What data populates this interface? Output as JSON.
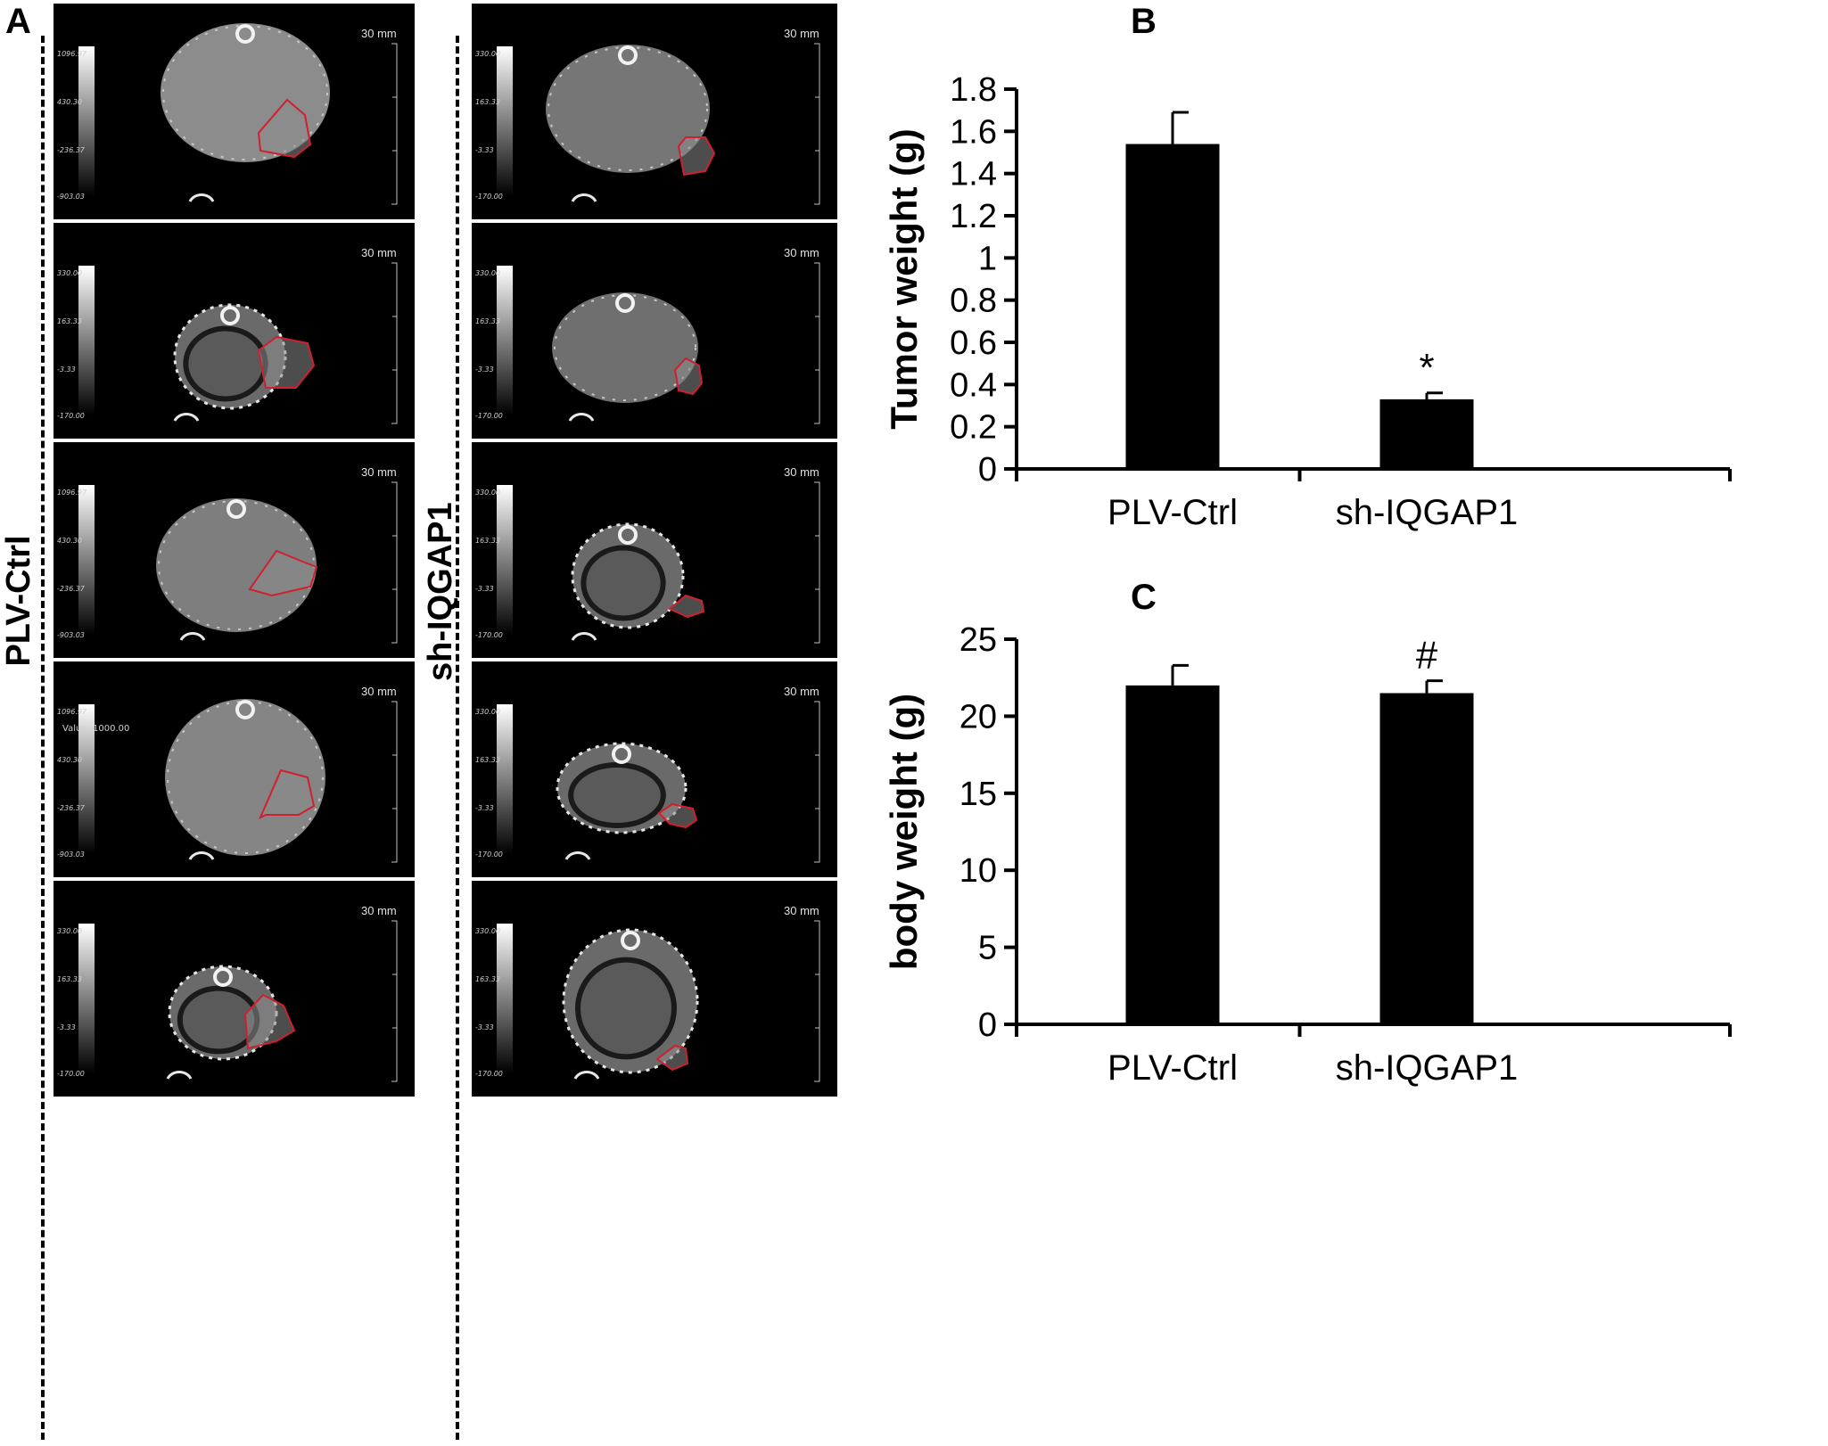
{
  "figure": {
    "panel_labels": {
      "a": "A",
      "b": "B",
      "c": "C"
    },
    "groups": {
      "left": "PLV-Ctrl",
      "right": "sh-IQGAP1"
    }
  },
  "ct_images": {
    "left": [
      {
        "scale_label": "30 mm",
        "colorbar": [
          "1096.97",
          "430.30",
          "-236.37",
          "-903.03"
        ],
        "value_label": ""
      },
      {
        "scale_label": "30 mm",
        "colorbar": [
          "330.00",
          "163.33",
          "-3.33",
          "-170.00"
        ],
        "value_label": ""
      },
      {
        "scale_label": "30 mm",
        "colorbar": [
          "1096.97",
          "430.30",
          "-236.37",
          "-903.03"
        ],
        "value_label": ""
      },
      {
        "scale_label": "30 mm",
        "colorbar": [
          "1096.97",
          "430.30",
          "-236.37",
          "-903.03"
        ],
        "value_label": "Value: 1000.00"
      },
      {
        "scale_label": "30 mm",
        "colorbar": [
          "330.00",
          "163.33",
          "-3.33",
          "-170.00"
        ],
        "value_label": ""
      }
    ],
    "right": [
      {
        "scale_label": "30 mm",
        "colorbar": [
          "330.00",
          "163.33",
          "-3.33",
          "-170.00"
        ],
        "value_label": ""
      },
      {
        "scale_label": "30 mm",
        "colorbar": [
          "330.00",
          "163.33",
          "-3.33",
          "-170.00"
        ],
        "value_label": ""
      },
      {
        "scale_label": "30 mm",
        "colorbar": [
          "330.00",
          "163.33",
          "-3.33",
          "-170.00"
        ],
        "value_label": ""
      },
      {
        "scale_label": "30 mm",
        "colorbar": [
          "330.00",
          "163.33",
          "-3.33",
          "-170.00"
        ],
        "value_label": ""
      },
      {
        "scale_label": "30 mm",
        "colorbar": [
          "330.00",
          "163.33",
          "-3.33",
          "-170.00"
        ],
        "value_label": ""
      }
    ],
    "tumor_outline_color": "#d0202f"
  },
  "chart_data": [
    {
      "type": "bar",
      "panel": "B",
      "categories": [
        "PLV-Ctrl",
        "sh-IQGAP1"
      ],
      "values": [
        1.54,
        0.33
      ],
      "errors": [
        0.15,
        0.03
      ],
      "annotations": [
        "",
        "*"
      ],
      "ylabel": "Tumor weight (g)",
      "ylim": [
        0,
        1.8
      ],
      "yticks": [
        "0",
        "0.2",
        "0.4",
        "0.6",
        "0.8",
        "1",
        "1.2",
        "1.4",
        "1.6",
        "1.8"
      ],
      "ytick_values": [
        0,
        0.2,
        0.4,
        0.6,
        0.8,
        1,
        1.2,
        1.4,
        1.6,
        1.8
      ],
      "grid": false,
      "bar_color": "#000000"
    },
    {
      "type": "bar",
      "panel": "C",
      "categories": [
        "PLV-Ctrl",
        "sh-IQGAP1"
      ],
      "values": [
        22.0,
        21.5
      ],
      "errors": [
        1.3,
        0.8
      ],
      "annotations": [
        "",
        "#"
      ],
      "ylabel": "body weight (g)",
      "ylim": [
        0,
        25
      ],
      "yticks": [
        "0",
        "5",
        "10",
        "15",
        "20",
        "25"
      ],
      "ytick_values": [
        0,
        5,
        10,
        15,
        20,
        25
      ],
      "grid": false,
      "bar_color": "#000000"
    }
  ]
}
